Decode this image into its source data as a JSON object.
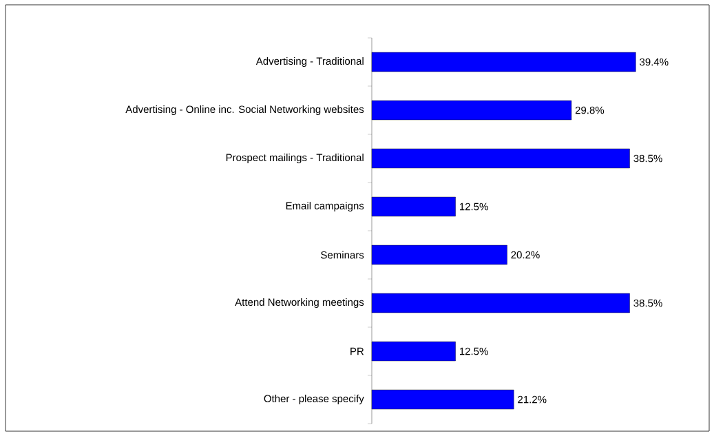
{
  "chart_data": {
    "type": "bar",
    "orientation": "horizontal",
    "categories": [
      "Advertising - Traditional",
      "Advertising - Online inc. Social Networking websites",
      "Prospect mailings - Traditional",
      "Email campaigns",
      "Seminars",
      "Attend Networking meetings",
      "PR",
      "Other - please specify"
    ],
    "values": [
      39.4,
      29.8,
      38.5,
      12.5,
      20.2,
      38.5,
      12.5,
      21.2
    ],
    "value_labels": [
      "39.4%",
      "29.8%",
      "38.5%",
      "12.5%",
      "20.2%",
      "38.5%",
      "12.5%",
      "21.2%"
    ],
    "color": "#0000ff"
  }
}
